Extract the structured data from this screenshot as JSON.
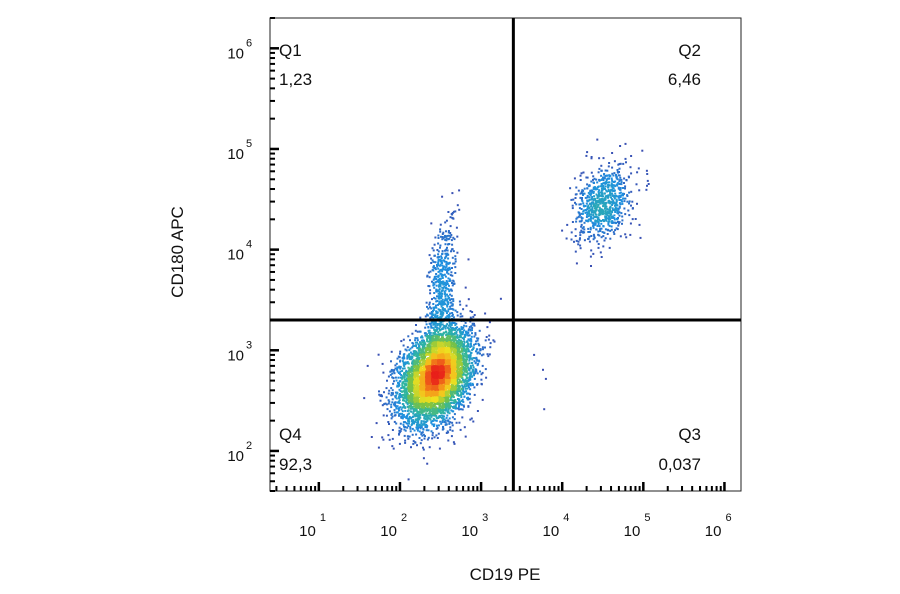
{
  "chart_data": {
    "type": "scatter",
    "subtype": "flow-cytometry density dot plot",
    "scale": {
      "x": "log",
      "y": "log"
    },
    "xlabel": "CD19 PE",
    "ylabel": "CD180 APC",
    "xlim": [
      2.5,
      1600000
    ],
    "ylim": [
      40,
      2000000
    ],
    "x_ticks": [
      {
        "base": "10",
        "exp": "1",
        "value": 10
      },
      {
        "base": "10",
        "exp": "2",
        "value": 100
      },
      {
        "base": "10",
        "exp": "3",
        "value": 1000
      },
      {
        "base": "10",
        "exp": "4",
        "value": 10000
      },
      {
        "base": "10",
        "exp": "5",
        "value": 100000
      },
      {
        "base": "10",
        "exp": "6",
        "value": 1000000
      }
    ],
    "y_ticks": [
      {
        "base": "10",
        "exp": "2",
        "value": 100
      },
      {
        "base": "10",
        "exp": "3",
        "value": 1000
      },
      {
        "base": "10",
        "exp": "4",
        "value": 10000
      },
      {
        "base": "10",
        "exp": "5",
        "value": 100000
      },
      {
        "base": "10",
        "exp": "6",
        "value": 1000000
      }
    ],
    "gates": {
      "x": 2500,
      "y": 2000
    },
    "quadrants": [
      {
        "name": "Q1",
        "percent": "1,23",
        "corner": "top-left"
      },
      {
        "name": "Q2",
        "percent": "6,46",
        "corner": "top-right"
      },
      {
        "name": "Q3",
        "percent": "0,037",
        "corner": "bottom-right"
      },
      {
        "name": "Q4",
        "percent": "92,3",
        "corner": "bottom-left"
      }
    ],
    "populations": [
      {
        "label": "double-negative main cluster",
        "x_center": 280,
        "y_center": 560,
        "x_sd_decades": 0.22,
        "y_sd_decades": 0.23,
        "fraction": 0.86
      },
      {
        "label": "CD180+ streak",
        "x_center": 330,
        "y_center": 4000,
        "x_sd_decades": 0.09,
        "y_sd_decades": 0.35,
        "fraction": 0.08
      },
      {
        "label": "double-positive cluster",
        "x_center": 32000,
        "y_center": 28000,
        "x_sd_decades": 0.17,
        "y_sd_decades": 0.19,
        "fraction": 0.12
      }
    ],
    "density_colormap": [
      "#3b4bb0",
      "#1e90e0",
      "#2fb5a0",
      "#7cc242",
      "#f0e020",
      "#f59a1a",
      "#e8201a"
    ],
    "grid": false,
    "legend": "none"
  }
}
